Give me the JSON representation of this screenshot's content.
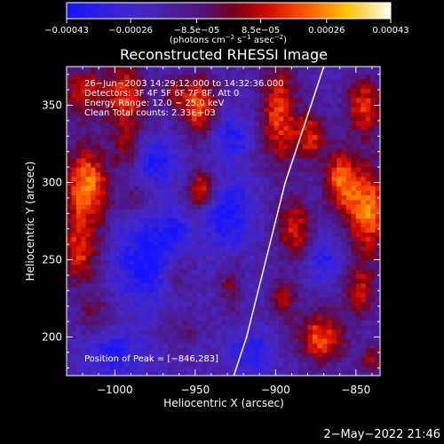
{
  "chart_data": {
    "type": "heatmap",
    "title": "Reconstructed RHESSI Image",
    "xlabel": "Heliocentric X (arcsec)",
    "ylabel": "Heliocentric Y (arcsec)",
    "xlim": [
      -1030,
      -835
    ],
    "ylim": [
      175,
      375
    ],
    "x_ticks": [
      -1000,
      -950,
      -900,
      -850
    ],
    "x_tick_labels": [
      "−1000",
      "−950",
      "−900",
      "−850"
    ],
    "y_ticks": [
      200,
      250,
      300,
      350
    ],
    "y_tick_labels": [
      "200",
      "250",
      "300",
      "350"
    ],
    "colorbar": {
      "range": [
        -0.00043,
        0.00043
      ],
      "tick_values": [
        -0.00043,
        -0.00026,
        -8.5e-05,
        8.5e-05,
        0.00026,
        0.00043
      ],
      "tick_labels": [
        "−0.00043",
        "−0.00026",
        "−8.5e−05",
        "8.5e−05",
        "0.00026",
        "0.00043"
      ],
      "unit_main": "(photons cm",
      "unit_sup1": "−2",
      "unit_mid": " s",
      "unit_sup2": "−1",
      "unit_tail": " asec",
      "unit_sup3": "−2",
      "unit_close": ")"
    },
    "annotations": [
      "26−Jun−2003 14:29:12.000 to 14:32:36.000",
      "Detectors: 3F 4F 5F 6F 7F 8F, Att 0",
      "Energy Range: 12.0 − 25.0 keV",
      "Clean      Total counts: 2.33E+03"
    ],
    "peak_label": "Position of Peak = [−846,283]",
    "peak": [
      -846,
      283
    ],
    "limb_curve": [
      [
        -926,
        175
      ],
      [
        -918,
        200
      ],
      [
        -912,
        225
      ],
      [
        -906,
        250
      ],
      [
        -900,
        275
      ],
      [
        -894,
        300
      ],
      [
        -886,
        325
      ],
      [
        -878,
        350
      ],
      [
        -870,
        375
      ]
    ],
    "hot_blobs": [
      {
        "x": -1018,
        "y": 298,
        "sx": 10,
        "sy": 18,
        "a": 0.00043
      },
      {
        "x": -1022,
        "y": 255,
        "sx": 9,
        "sy": 14,
        "a": 0.0003
      },
      {
        "x": -1020,
        "y": 360,
        "sx": 10,
        "sy": 12,
        "a": 0.00026
      },
      {
        "x": -1012,
        "y": 215,
        "sx": 8,
        "sy": 10,
        "a": 0.00015
      },
      {
        "x": -993,
        "y": 355,
        "sx": 9,
        "sy": 18,
        "a": 0.00032
      },
      {
        "x": -992,
        "y": 320,
        "sx": 6,
        "sy": 8,
        "a": 0.00018
      },
      {
        "x": -948,
        "y": 350,
        "sx": 8,
        "sy": 14,
        "a": 0.00036
      },
      {
        "x": -963,
        "y": 360,
        "sx": 5,
        "sy": 7,
        "a": 0.0002
      },
      {
        "x": -946,
        "y": 296,
        "sx": 6,
        "sy": 8,
        "a": 0.00035
      },
      {
        "x": -988,
        "y": 290,
        "sx": 7,
        "sy": 6,
        "a": 0.00014
      },
      {
        "x": -962,
        "y": 240,
        "sx": 7,
        "sy": 9,
        "a": 0.00016
      },
      {
        "x": -958,
        "y": 205,
        "sx": 8,
        "sy": 7,
        "a": 0.00012
      },
      {
        "x": -928,
        "y": 232,
        "sx": 5,
        "sy": 12,
        "a": 0.00017
      },
      {
        "x": -898,
        "y": 345,
        "sx": 8,
        "sy": 24,
        "a": 0.00034
      },
      {
        "x": -888,
        "y": 270,
        "sx": 8,
        "sy": 14,
        "a": 0.00028
      },
      {
        "x": -895,
        "y": 225,
        "sx": 6,
        "sy": 9,
        "a": 0.00022
      },
      {
        "x": -878,
        "y": 330,
        "sx": 7,
        "sy": 12,
        "a": 0.0003
      },
      {
        "x": -872,
        "y": 200,
        "sx": 10,
        "sy": 12,
        "a": 0.00036
      },
      {
        "x": -860,
        "y": 302,
        "sx": 7,
        "sy": 14,
        "a": 0.00035
      },
      {
        "x": -843,
        "y": 283,
        "sx": 9,
        "sy": 20,
        "a": 0.00043
      },
      {
        "x": -845,
        "y": 350,
        "sx": 8,
        "sy": 14,
        "a": 0.00032
      },
      {
        "x": -848,
        "y": 230,
        "sx": 7,
        "sy": 12,
        "a": 0.00026
      },
      {
        "x": -840,
        "y": 185,
        "sx": 6,
        "sy": 8,
        "a": 0.0002
      }
    ],
    "cold_blobs": [
      {
        "x": -980,
        "y": 250,
        "sx": 14,
        "sy": 20,
        "a": -0.00026
      },
      {
        "x": -975,
        "y": 315,
        "sx": 10,
        "sy": 10,
        "a": -0.00022
      },
      {
        "x": -930,
        "y": 280,
        "sx": 10,
        "sy": 16,
        "a": -0.00024
      },
      {
        "x": -928,
        "y": 330,
        "sx": 8,
        "sy": 10,
        "a": -0.0002
      },
      {
        "x": -1000,
        "y": 190,
        "sx": 12,
        "sy": 10,
        "a": -0.0002
      },
      {
        "x": -915,
        "y": 190,
        "sx": 10,
        "sy": 10,
        "a": -0.00018
      },
      {
        "x": -870,
        "y": 250,
        "sx": 8,
        "sy": 10,
        "a": -0.00018
      },
      {
        "x": -962,
        "y": 270,
        "sx": 6,
        "sy": 8,
        "a": -0.00016
      }
    ]
  },
  "timestamp": "2−May−2022 21:46"
}
